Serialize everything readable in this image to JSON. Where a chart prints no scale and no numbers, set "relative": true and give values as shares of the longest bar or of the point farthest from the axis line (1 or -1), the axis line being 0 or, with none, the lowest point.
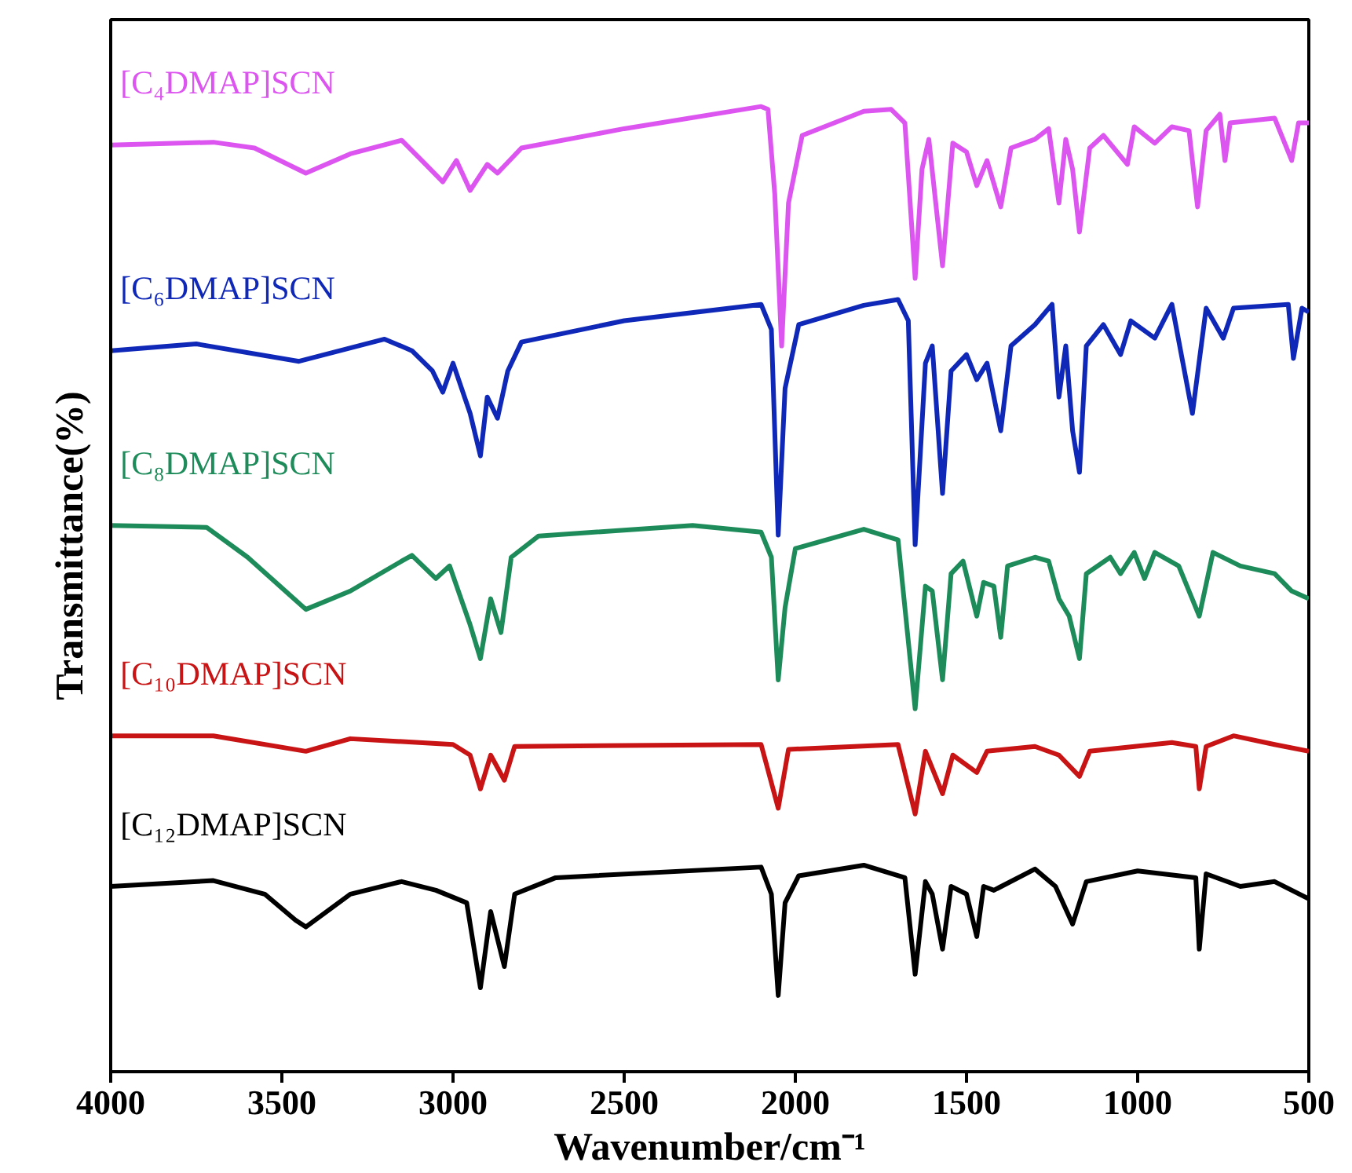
{
  "chart_data": {
    "type": "line",
    "relative": true,
    "xlabel": "Wavenumber/cm⁻¹",
    "ylabel": "Transmittance(%)",
    "xlim": [
      4000,
      500
    ],
    "xticks": [
      4000,
      3500,
      3000,
      2500,
      2000,
      1500,
      1000,
      500
    ],
    "grid": false,
    "series": [
      {
        "name": "[C₄DMAP]SCN",
        "color": "#dd55f0",
        "x": [
          4000,
          3700,
          3580,
          3430,
          3300,
          3150,
          3080,
          3030,
          2990,
          2950,
          2900,
          2870,
          2800,
          2500,
          2100,
          2080,
          2060,
          2040,
          2020,
          1980,
          1800,
          1720,
          1680,
          1650,
          1630,
          1610,
          1570,
          1540,
          1500,
          1470,
          1440,
          1400,
          1370,
          1300,
          1260,
          1230,
          1210,
          1190,
          1170,
          1140,
          1100,
          1030,
          1010,
          950,
          900,
          850,
          825,
          800,
          760,
          745,
          730,
          600,
          550,
          530,
          500
        ],
        "values": [
          0.96,
          0.963,
          0.957,
          0.931,
          0.951,
          0.965,
          0.94,
          0.922,
          0.944,
          0.913,
          0.94,
          0.931,
          0.957,
          0.977,
          1.0,
          0.997,
          0.909,
          0.752,
          0.9,
          0.97,
          0.995,
          0.997,
          0.983,
          0.822,
          0.935,
          0.966,
          0.835,
          0.962,
          0.953,
          0.918,
          0.944,
          0.896,
          0.957,
          0.966,
          0.977,
          0.9,
          0.966,
          0.935,
          0.87,
          0.957,
          0.97,
          0.94,
          0.979,
          0.962,
          0.979,
          0.975,
          0.896,
          0.975,
          0.992,
          0.944,
          0.983,
          0.988,
          0.944,
          0.983,
          0.983
        ]
      },
      {
        "name": "[C₆DMAP]SCN",
        "color": "#1028b8",
        "x": [
          4000,
          3750,
          3450,
          3200,
          3120,
          3060,
          3030,
          3000,
          2950,
          2920,
          2900,
          2870,
          2840,
          2800,
          2500,
          2100,
          2070,
          2050,
          2030,
          1990,
          1800,
          1700,
          1670,
          1650,
          1620,
          1600,
          1570,
          1545,
          1500,
          1470,
          1440,
          1400,
          1370,
          1300,
          1250,
          1230,
          1210,
          1190,
          1170,
          1150,
          1100,
          1050,
          1020,
          950,
          900,
          840,
          800,
          750,
          720,
          560,
          545,
          520,
          500
        ],
        "values": [
          0.747,
          0.754,
          0.736,
          0.759,
          0.747,
          0.726,
          0.704,
          0.734,
          0.682,
          0.638,
          0.699,
          0.677,
          0.726,
          0.756,
          0.778,
          0.795,
          0.769,
          0.556,
          0.708,
          0.774,
          0.794,
          0.8,
          0.778,
          0.546,
          0.734,
          0.752,
          0.599,
          0.726,
          0.743,
          0.717,
          0.734,
          0.664,
          0.752,
          0.774,
          0.795,
          0.699,
          0.752,
          0.664,
          0.621,
          0.752,
          0.774,
          0.743,
          0.778,
          0.76,
          0.795,
          0.682,
          0.791,
          0.76,
          0.791,
          0.795,
          0.739,
          0.791,
          0.787
        ]
      },
      {
        "name": "[C₈DMAP]SCN",
        "color": "#1e8c5a",
        "x": [
          4000,
          3720,
          3600,
          3430,
          3300,
          3150,
          3120,
          3050,
          3010,
          2950,
          2920,
          2890,
          2860,
          2830,
          2750,
          2300,
          2100,
          2070,
          2050,
          2030,
          2000,
          1800,
          1700,
          1650,
          1620,
          1600,
          1570,
          1545,
          1510,
          1470,
          1450,
          1420,
          1400,
          1380,
          1300,
          1260,
          1230,
          1200,
          1170,
          1150,
          1080,
          1050,
          1010,
          980,
          950,
          880,
          820,
          780,
          700,
          600,
          550,
          500
        ],
        "values": [
          0.566,
          0.564,
          0.533,
          0.479,
          0.498,
          0.529,
          0.535,
          0.511,
          0.524,
          0.463,
          0.428,
          0.49,
          0.455,
          0.533,
          0.555,
          0.566,
          0.559,
          0.533,
          0.406,
          0.481,
          0.542,
          0.562,
          0.551,
          0.376,
          0.503,
          0.498,
          0.406,
          0.516,
          0.529,
          0.472,
          0.507,
          0.503,
          0.45,
          0.524,
          0.533,
          0.529,
          0.49,
          0.472,
          0.428,
          0.516,
          0.533,
          0.516,
          0.538,
          0.511,
          0.538,
          0.524,
          0.472,
          0.538,
          0.524,
          0.516,
          0.498,
          0.49
        ]
      },
      {
        "name": "[C₁₀DMAP]SCN",
        "color": "#c81414",
        "x": [
          4000,
          3700,
          3430,
          3300,
          3000,
          2950,
          2920,
          2890,
          2850,
          2820,
          2100,
          2050,
          2020,
          1700,
          1650,
          1620,
          1570,
          1540,
          1470,
          1440,
          1300,
          1230,
          1170,
          1140,
          900,
          830,
          820,
          800,
          720,
          600,
          500
        ],
        "values": [
          0.348,
          0.348,
          0.332,
          0.345,
          0.339,
          0.328,
          0.293,
          0.328,
          0.302,
          0.337,
          0.339,
          0.273,
          0.334,
          0.339,
          0.267,
          0.332,
          0.288,
          0.328,
          0.31,
          0.332,
          0.337,
          0.328,
          0.306,
          0.332,
          0.341,
          0.337,
          0.293,
          0.337,
          0.348,
          0.339,
          0.332
        ]
      },
      {
        "name": "[C₁₂DMAP]SCN",
        "color": "#000000",
        "x": [
          4000,
          3700,
          3550,
          3460,
          3430,
          3300,
          3150,
          3050,
          2960,
          2920,
          2890,
          2850,
          2820,
          2700,
          2100,
          2070,
          2050,
          2030,
          1990,
          1800,
          1680,
          1650,
          1620,
          1600,
          1570,
          1545,
          1500,
          1470,
          1450,
          1420,
          1300,
          1240,
          1190,
          1150,
          1000,
          830,
          820,
          800,
          700,
          600,
          500
        ],
        "values": [
          0.192,
          0.198,
          0.184,
          0.157,
          0.15,
          0.184,
          0.197,
          0.188,
          0.175,
          0.087,
          0.166,
          0.109,
          0.184,
          0.201,
          0.212,
          0.184,
          0.079,
          0.175,
          0.203,
          0.214,
          0.201,
          0.101,
          0.197,
          0.184,
          0.127,
          0.192,
          0.184,
          0.14,
          0.192,
          0.188,
          0.21,
          0.192,
          0.153,
          0.197,
          0.208,
          0.201,
          0.127,
          0.205,
          0.192,
          0.197,
          0.179
        ]
      }
    ]
  }
}
